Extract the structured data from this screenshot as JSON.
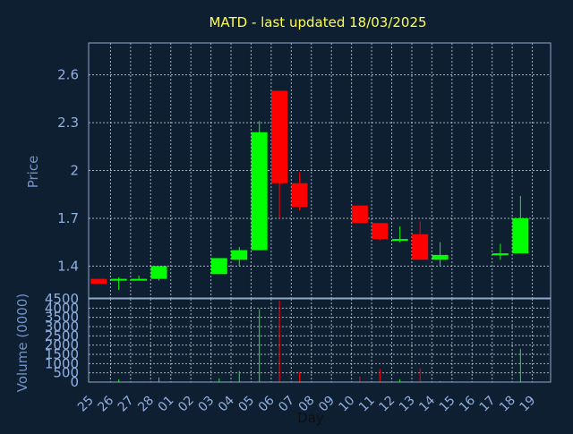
{
  "chart_data": [
    {
      "type": "candlestick",
      "title": "MATD - last updated 18/03/2025",
      "xlabel": "",
      "ylabel": "Price",
      "ylim": [
        1.2,
        2.8
      ],
      "yticks": [
        "1.4",
        "1.7",
        "2",
        "2.3",
        "2.6"
      ],
      "grid": true,
      "up_color": "#00ff00",
      "down_color": "#ff0000",
      "categories": [
        "25",
        "26",
        "27",
        "28",
        "01",
        "02",
        "03",
        "04",
        "05",
        "06",
        "07",
        "08",
        "09",
        "10",
        "11",
        "12",
        "13",
        "14",
        "15",
        "16",
        "17",
        "18",
        "19"
      ],
      "candles": [
        {
          "day": "25",
          "open": 1.32,
          "high": 1.32,
          "low": 1.29,
          "close": 1.29
        },
        {
          "day": "26",
          "open": 1.32,
          "high": 1.33,
          "low": 1.25,
          "close": 1.32
        },
        {
          "day": "27",
          "open": 1.32,
          "high": 1.34,
          "low": 1.31,
          "close": 1.32
        },
        {
          "day": "28",
          "open": 1.32,
          "high": 1.4,
          "low": 1.31,
          "close": 1.4
        },
        null,
        null,
        {
          "day": "03",
          "open": 1.35,
          "high": 1.45,
          "low": 1.35,
          "close": 1.45
        },
        {
          "day": "04",
          "open": 1.44,
          "high": 1.52,
          "low": 1.4,
          "close": 1.5
        },
        {
          "day": "05",
          "open": 1.5,
          "high": 2.31,
          "low": 1.5,
          "close": 2.24
        },
        {
          "day": "06",
          "open": 2.5,
          "high": 2.5,
          "low": 1.7,
          "close": 1.92
        },
        {
          "day": "07",
          "open": 1.92,
          "high": 1.99,
          "low": 1.75,
          "close": 1.77
        },
        null,
        null,
        {
          "day": "10",
          "open": 1.78,
          "high": 1.78,
          "low": 1.67,
          "close": 1.67
        },
        {
          "day": "11",
          "open": 1.67,
          "high": 1.67,
          "low": 1.56,
          "close": 1.57
        },
        {
          "day": "12",
          "open": 1.57,
          "high": 1.65,
          "low": 1.55,
          "close": 1.57
        },
        {
          "day": "13",
          "open": 1.6,
          "high": 1.68,
          "low": 1.44,
          "close": 1.44
        },
        {
          "day": "14",
          "open": 1.44,
          "high": 1.55,
          "low": 1.4,
          "close": 1.47
        },
        null,
        null,
        {
          "day": "17",
          "open": 1.47,
          "high": 1.54,
          "low": 1.44,
          "close": 1.48
        },
        {
          "day": "18",
          "open": 1.48,
          "high": 1.84,
          "low": 1.48,
          "close": 1.7
        },
        null
      ]
    },
    {
      "type": "bar",
      "xlabel": "Day",
      "ylabel": "Volume (0000)",
      "ylim": [
        0,
        4500
      ],
      "yticks": [
        "0",
        "500",
        "1000",
        "1500",
        "2000",
        "2500",
        "3000",
        "3500",
        "4000",
        "4500"
      ],
      "grid": true,
      "categories": [
        "25",
        "26",
        "27",
        "28",
        "01",
        "02",
        "03",
        "04",
        "05",
        "06",
        "07",
        "08",
        "09",
        "10",
        "11",
        "12",
        "13",
        "14",
        "15",
        "16",
        "17",
        "18",
        "19"
      ],
      "values": [
        30,
        150,
        30,
        250,
        0,
        0,
        200,
        600,
        3950,
        4400,
        550,
        0,
        0,
        300,
        700,
        150,
        750,
        50,
        0,
        0,
        30,
        1800,
        0
      ],
      "colors": [
        "down",
        "up",
        "up",
        "up",
        null,
        null,
        "up",
        "up",
        "up",
        "down",
        "down",
        null,
        null,
        "down",
        "down",
        "up",
        "down",
        "up",
        null,
        null,
        "up",
        "up",
        null
      ]
    }
  ]
}
